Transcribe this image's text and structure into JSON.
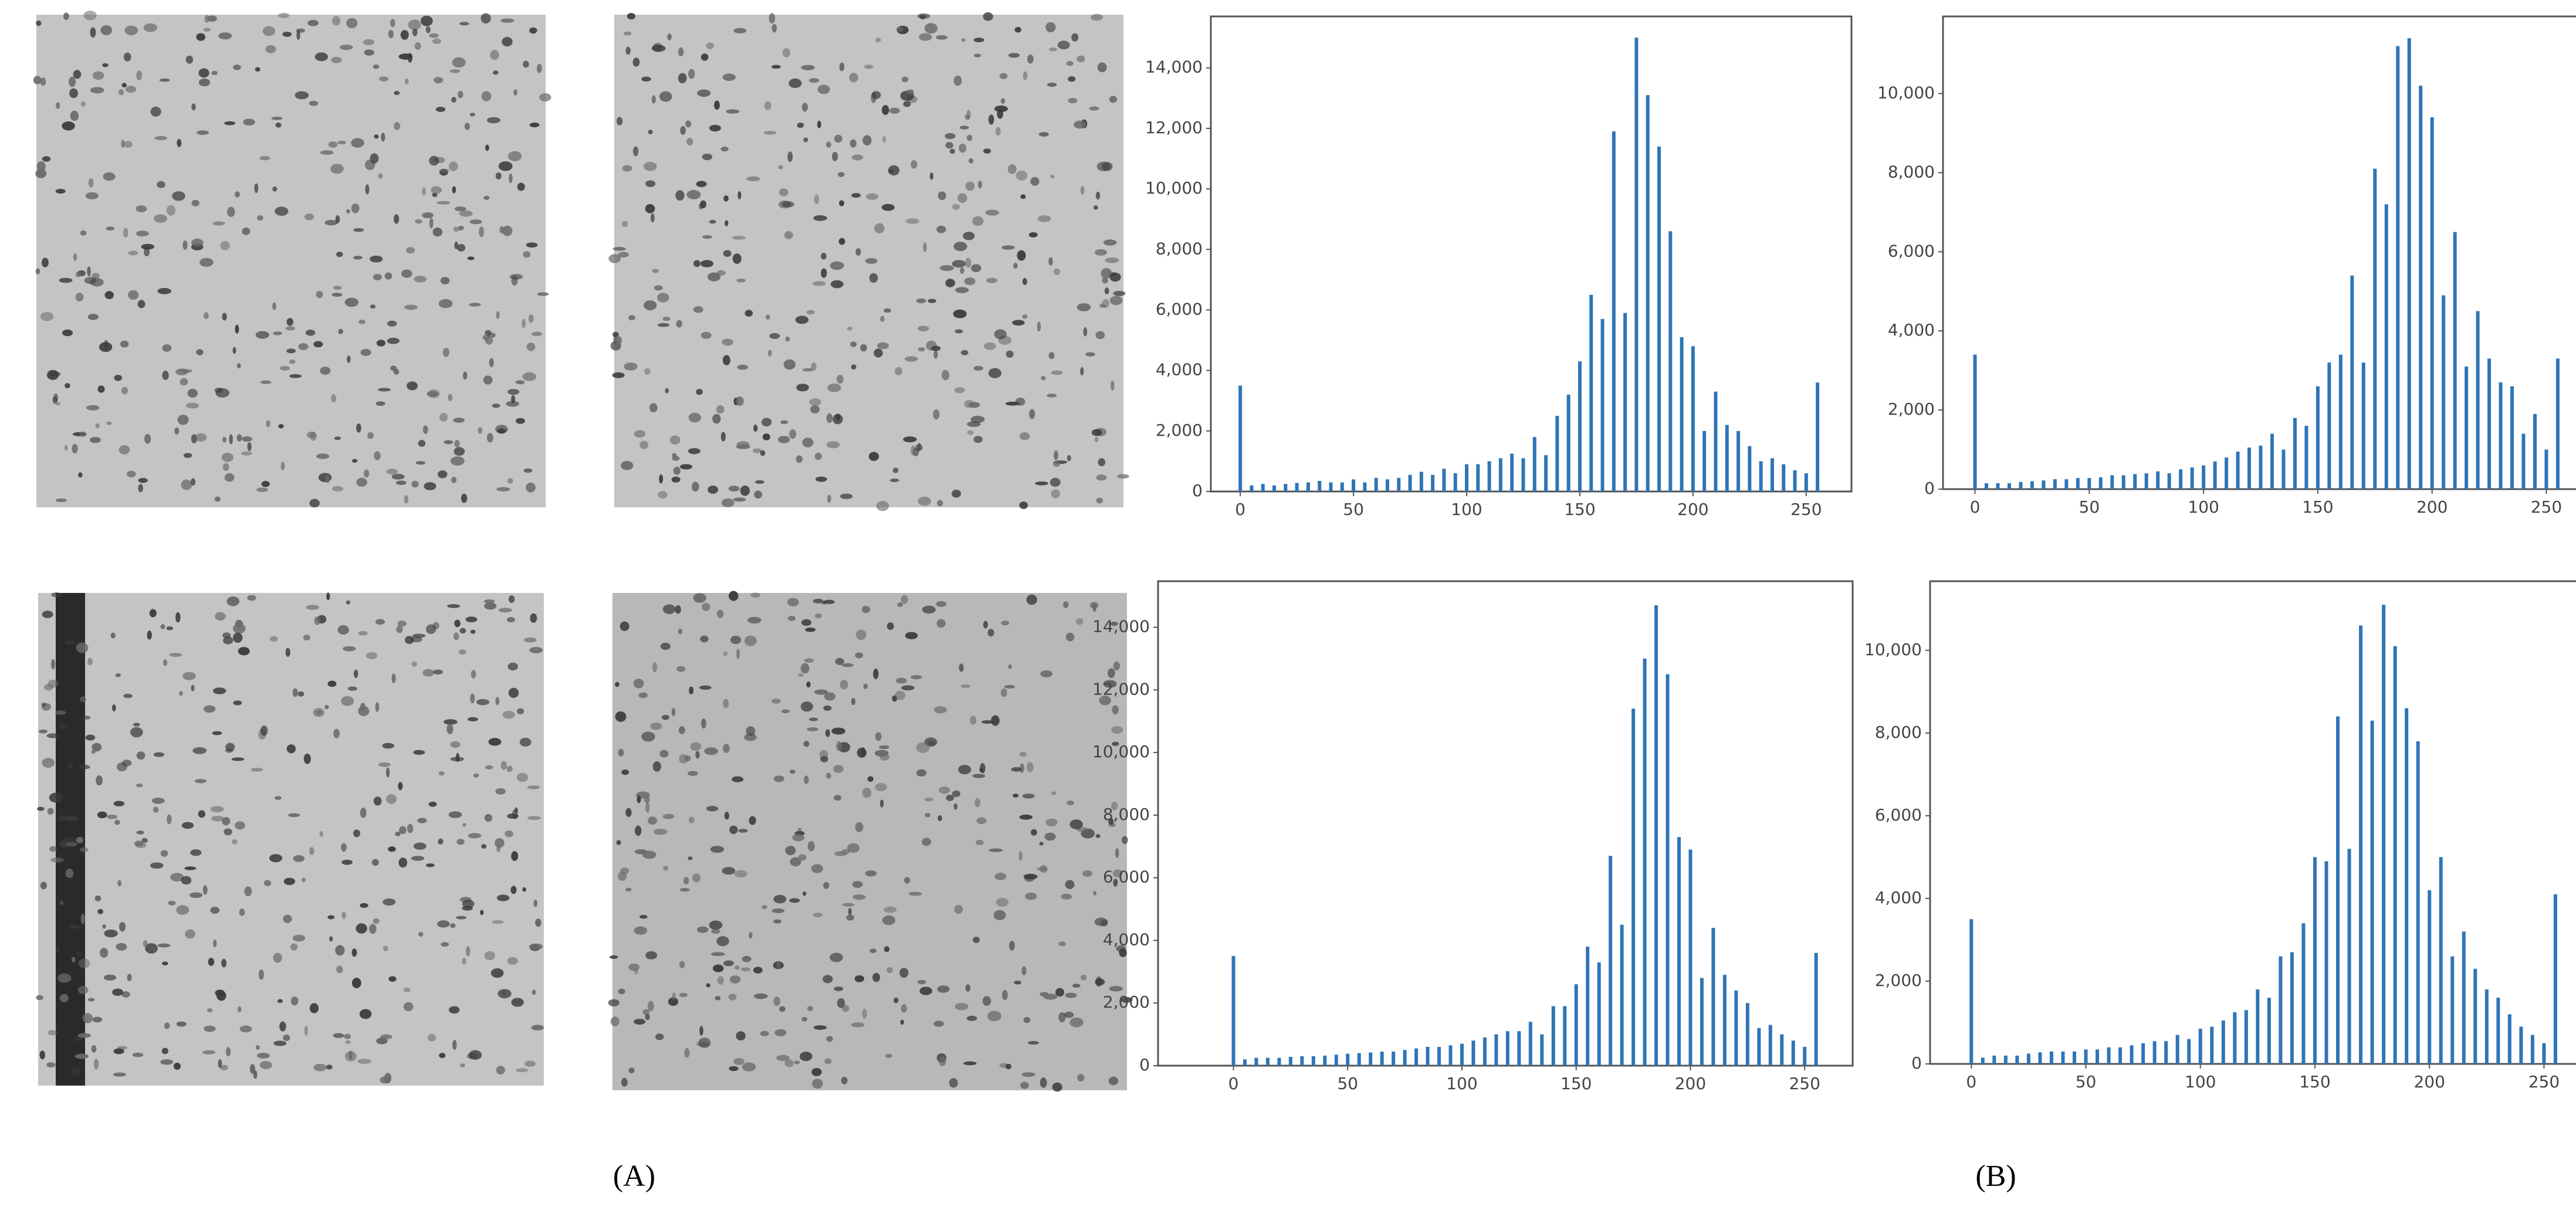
{
  "panel_labels": [
    "(A)",
    "(B)"
  ],
  "chart_data": [
    {
      "type": "bar",
      "color": "#2e75b6",
      "x": [
        0,
        5,
        10,
        15,
        20,
        25,
        30,
        35,
        40,
        45,
        50,
        55,
        60,
        65,
        70,
        75,
        80,
        85,
        90,
        95,
        100,
        105,
        110,
        115,
        120,
        125,
        130,
        135,
        140,
        145,
        150,
        155,
        160,
        165,
        170,
        175,
        180,
        185,
        190,
        195,
        200,
        205,
        210,
        215,
        220,
        225,
        230,
        235,
        240,
        245,
        250,
        255
      ],
      "values": [
        3500,
        200,
        250,
        200,
        250,
        280,
        300,
        350,
        300,
        300,
        400,
        300,
        450,
        400,
        450,
        550,
        650,
        550,
        750,
        600,
        900,
        900,
        1000,
        1100,
        1250,
        1100,
        1800,
        1200,
        2500,
        3200,
        4300,
        6500,
        5700,
        11900,
        5900,
        15000,
        13100,
        11400,
        8600,
        5100,
        4800,
        2000,
        3300,
        2200,
        2000,
        1500,
        1000,
        1100,
        900,
        700,
        600,
        3600
      ],
      "xlim": [
        -13,
        270
      ],
      "ylim": [
        0,
        15700
      ],
      "xticks": [
        0,
        50,
        100,
        150,
        200,
        250
      ],
      "yticks": [
        0,
        {
          "value": 2000,
          "label": "2,000"
        },
        {
          "value": 4000,
          "label": "4,000"
        },
        {
          "value": 6000,
          "label": "6,000"
        },
        {
          "value": 8000,
          "label": "8,000"
        },
        {
          "value": 10000,
          "label": "10,000"
        },
        {
          "value": 12000,
          "label": "12,000"
        },
        {
          "value": 14000,
          "label": "14,000"
        }
      ]
    },
    {
      "type": "bar",
      "color": "#2e75b6",
      "x": [
        0,
        5,
        10,
        15,
        20,
        25,
        30,
        35,
        40,
        45,
        50,
        55,
        60,
        65,
        70,
        75,
        80,
        85,
        90,
        95,
        100,
        105,
        110,
        115,
        120,
        125,
        130,
        135,
        140,
        145,
        150,
        155,
        160,
        165,
        170,
        175,
        180,
        185,
        190,
        195,
        200,
        205,
        210,
        215,
        220,
        225,
        230,
        235,
        240,
        245,
        250,
        255
      ],
      "values": [
        3400,
        150,
        150,
        150,
        180,
        200,
        220,
        250,
        250,
        280,
        280,
        300,
        350,
        350,
        380,
        400,
        450,
        400,
        500,
        550,
        600,
        700,
        800,
        950,
        1050,
        1100,
        1400,
        1000,
        1800,
        1600,
        2600,
        3200,
        3400,
        5400,
        3200,
        8100,
        7200,
        11200,
        11400,
        10200,
        9400,
        4900,
        6500,
        3100,
        4500,
        3300,
        2700,
        2600,
        1400,
        1900,
        1000,
        3300
      ],
      "xlim": [
        -14,
        264
      ],
      "ylim": [
        0,
        11950
      ],
      "xticks": [
        0,
        50,
        100,
        150,
        200,
        250
      ],
      "yticks": [
        0,
        {
          "value": 2000,
          "label": "2,000"
        },
        {
          "value": 4000,
          "label": "4,000"
        },
        {
          "value": 6000,
          "label": "6,000"
        },
        {
          "value": 8000,
          "label": "8,000"
        },
        {
          "value": 10000,
          "label": "10,000"
        }
      ]
    },
    {
      "type": "bar",
      "color": "#2e75b6",
      "x": [
        0,
        5,
        10,
        15,
        20,
        25,
        30,
        35,
        40,
        45,
        50,
        55,
        60,
        65,
        70,
        75,
        80,
        85,
        90,
        95,
        100,
        105,
        110,
        115,
        120,
        125,
        130,
        135,
        140,
        145,
        150,
        155,
        160,
        165,
        170,
        175,
        180,
        185,
        190,
        195,
        200,
        205,
        210,
        215,
        220,
        225,
        230,
        235,
        240,
        245,
        250,
        255
      ],
      "values": [
        3500,
        200,
        250,
        250,
        250,
        280,
        300,
        300,
        320,
        350,
        380,
        400,
        420,
        450,
        450,
        500,
        550,
        600,
        600,
        650,
        700,
        800,
        900,
        1000,
        1100,
        1100,
        1400,
        1000,
        1900,
        1900,
        2600,
        3800,
        3300,
        6700,
        4500,
        11400,
        13000,
        14700,
        12500,
        7300,
        6900,
        2800,
        4400,
        2900,
        2400,
        2000,
        1200,
        1300,
        1000,
        800,
        600,
        3600
      ],
      "xlim": [
        -33,
        271
      ],
      "ylim": [
        0,
        15470
      ],
      "xticks": [
        0,
        50,
        100,
        150,
        200,
        250
      ],
      "yticks": [
        0,
        {
          "value": 2000,
          "label": "2,000"
        },
        {
          "value": 4000,
          "label": "4,000"
        },
        {
          "value": 6000,
          "label": "6,000"
        },
        {
          "value": 8000,
          "label": "8,000"
        },
        {
          "value": 10000,
          "label": "10,000"
        },
        {
          "value": 12000,
          "label": "12,000"
        },
        {
          "value": 14000,
          "label": "14,000"
        }
      ]
    },
    {
      "type": "bar",
      "color": "#2e75b6",
      "x": [
        0,
        5,
        10,
        15,
        20,
        25,
        30,
        35,
        40,
        45,
        50,
        55,
        60,
        65,
        70,
        75,
        80,
        85,
        90,
        95,
        100,
        105,
        110,
        115,
        120,
        125,
        130,
        135,
        140,
        145,
        150,
        155,
        160,
        165,
        170,
        175,
        180,
        185,
        190,
        195,
        200,
        205,
        210,
        215,
        220,
        225,
        230,
        235,
        240,
        245,
        250,
        255
      ],
      "values": [
        3500,
        150,
        200,
        200,
        200,
        250,
        280,
        300,
        300,
        300,
        350,
        350,
        400,
        400,
        450,
        500,
        550,
        550,
        700,
        600,
        850,
        900,
        1050,
        1250,
        1300,
        1800,
        1600,
        2600,
        2700,
        3400,
        5000,
        4900,
        8400,
        5200,
        10600,
        8300,
        11100,
        10100,
        8600,
        7800,
        4200,
        5000,
        2600,
        3200,
        2300,
        1800,
        1600,
        1200,
        900,
        700,
        500,
        4100
      ],
      "xlim": [
        -18,
        265
      ],
      "ylim": [
        0,
        11670
      ],
      "xticks": [
        0,
        50,
        100,
        150,
        200,
        250
      ],
      "yticks": [
        0,
        {
          "value": 2000,
          "label": "2,000"
        },
        {
          "value": 4000,
          "label": "4,000"
        },
        {
          "value": 6000,
          "label": "6,000"
        },
        {
          "value": 8000,
          "label": "8,000"
        },
        {
          "value": 10000,
          "label": "10,000"
        }
      ]
    }
  ]
}
